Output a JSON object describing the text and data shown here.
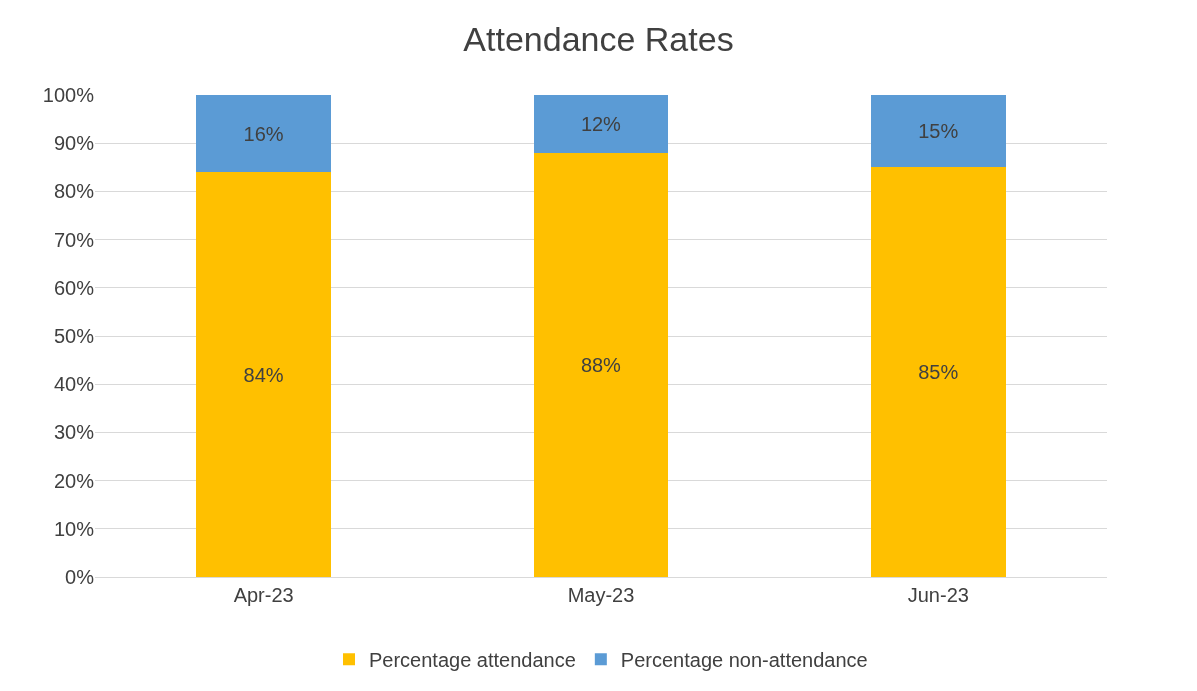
{
  "chart_data": {
    "type": "bar",
    "title": "Attendance Rates",
    "stacked": true,
    "categories": [
      "Apr-23",
      "May-23",
      "Jun-23"
    ],
    "series": [
      {
        "name": "Percentage attendance",
        "color": "#ffc000",
        "values": [
          84,
          88,
          85
        ],
        "value_labels": [
          "84%",
          "88%",
          "85%"
        ]
      },
      {
        "name": "Percentage non-attendance",
        "color": "#5b9bd5",
        "values": [
          16,
          12,
          15
        ],
        "value_labels": [
          "16%",
          "12%",
          "15%"
        ]
      }
    ],
    "ylim": [
      0,
      100
    ],
    "yticks": [
      {
        "value": 0,
        "label": "0%"
      },
      {
        "value": 10,
        "label": "10%"
      },
      {
        "value": 20,
        "label": "20%"
      },
      {
        "value": 30,
        "label": "30%"
      },
      {
        "value": 40,
        "label": "40%"
      },
      {
        "value": 50,
        "label": "50%"
      },
      {
        "value": 60,
        "label": "60%"
      },
      {
        "value": 70,
        "label": "70%"
      },
      {
        "value": 80,
        "label": "80%"
      },
      {
        "value": 90,
        "label": "90%"
      },
      {
        "value": 100,
        "label": "100%"
      }
    ],
    "grid": "y",
    "legend": "bottom"
  }
}
